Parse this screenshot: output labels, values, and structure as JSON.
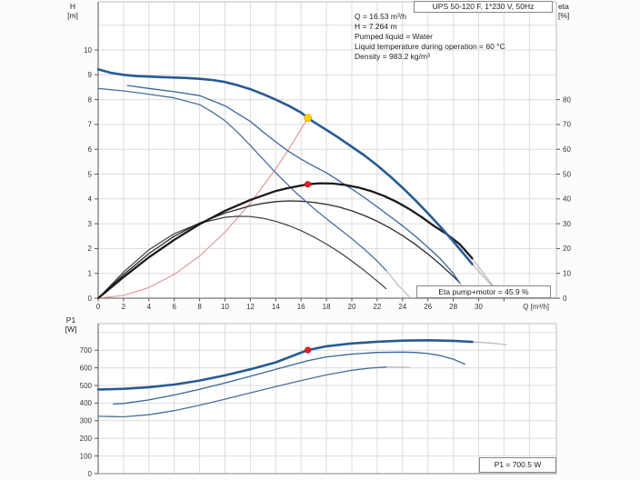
{
  "annotation": {
    "lines": [
      "Q = 16.53 m³/h",
      "H = 7.264 m",
      "Pumped liquid = Water",
      "Liquid temperature during operation = 60 °C",
      "Density = 983.2 kg/m³"
    ]
  },
  "chart_data": [
    {
      "id": "qh",
      "type": "line",
      "title": "UPS 50-120 F, 1*230 V, 50Hz",
      "xlabel": "Q [m³/h]",
      "ylabel_left": "H [m]",
      "ylabel_left_lines": [
        "H",
        "[m]"
      ],
      "ylabel_right": "eta [%]",
      "ylabel_right_lines": [
        "eta",
        "[%]"
      ],
      "result_box": "Eta pump+motor = 45.9 %",
      "xlim": [
        0,
        36.1
      ],
      "ylim_left": [
        0,
        11.9
      ],
      "ylim_right": [
        0,
        119
      ],
      "x_ticks": [
        0,
        2,
        4,
        6,
        8,
        10,
        12,
        14,
        16,
        18,
        20,
        22,
        24,
        26,
        28,
        30
      ],
      "y_ticks_left": [
        0,
        1,
        2,
        3,
        4,
        5,
        6,
        7,
        8,
        9,
        10
      ],
      "y_ticks_right": [
        0,
        10,
        20,
        30,
        40,
        50,
        60,
        70,
        80
      ],
      "grid": true,
      "colors": {
        "grid": "#dcdcdc",
        "frame": "#bdbdbd",
        "axis": "#555555",
        "tick_text": "#333333"
      },
      "series": [
        {
          "name": "system-curve",
          "axis": "H",
          "color": "#e59093",
          "width": 1.1,
          "x": [
            0,
            2,
            4,
            6,
            8,
            10,
            12,
            14,
            15,
            16,
            16.53
          ],
          "y": [
            0,
            0.11,
            0.43,
            0.96,
            1.7,
            2.66,
            3.83,
            5.21,
            5.98,
            6.81,
            7.264
          ]
        },
        {
          "name": "qh-speed1-gray-tail",
          "axis": "H",
          "color": "#b5b5b5",
          "width": 1.1,
          "x": [
            22.7,
            23.7,
            24.55
          ],
          "y": [
            1.12,
            0.5,
            0.05
          ]
        },
        {
          "name": "qh-speed2-gray-tail",
          "axis": "H",
          "color": "#b5b5b5",
          "width": 1.1,
          "x": [
            28.5,
            29.1
          ],
          "y": [
            0.62,
            0.15
          ]
        },
        {
          "name": "qh-speed3-gray-tail",
          "axis": "H",
          "color": "#b5b5b5",
          "width": 1.2,
          "x": [
            29.5,
            30.6,
            31.7
          ],
          "y": [
            1.37,
            0.75,
            0.12
          ]
        },
        {
          "name": "eta-speed3-gray-tail",
          "axis": "eta",
          "color": "#b5b5b5",
          "width": 1.2,
          "x": [
            29.5,
            30.6,
            31.7
          ],
          "y": [
            16,
            8.5,
            1.2
          ]
        },
        {
          "name": "eta-speed1",
          "axis": "eta",
          "color": "#3c3c3c",
          "width": 1.2,
          "x": [
            0,
            2,
            4,
            6,
            8,
            10,
            11,
            12,
            13,
            14,
            15,
            16,
            17,
            18,
            19,
            20,
            21,
            22,
            22.7
          ],
          "y": [
            0,
            10.5,
            19.5,
            26,
            30.2,
            32.6,
            33.0,
            32.9,
            32.2,
            31.0,
            29.3,
            27.2,
            24.7,
            21.8,
            18.6,
            15.0,
            11.1,
            6.9,
            3.8
          ]
        },
        {
          "name": "eta-speed2",
          "axis": "eta",
          "color": "#2b2b2b",
          "width": 1.3,
          "x": [
            0,
            2,
            4,
            6,
            8,
            10,
            12,
            13,
            14,
            15,
            16,
            17,
            18,
            19,
            20,
            21,
            22,
            23,
            24,
            25,
            26,
            27,
            28,
            28.5
          ],
          "y": [
            0,
            9.5,
            18,
            25,
            30.3,
            34.3,
            37.2,
            38.2,
            38.9,
            39.2,
            39.1,
            38.6,
            37.8,
            36.7,
            35.2,
            33.3,
            31.0,
            28.3,
            25.2,
            21.7,
            17.8,
            13.5,
            8.8,
            6.3
          ]
        },
        {
          "name": "qh-speed1",
          "axis": "H",
          "color": "#4b6f9d",
          "width": 1.3,
          "x": [
            0,
            2,
            4,
            6,
            8,
            9,
            10,
            11,
            12,
            13,
            14,
            15,
            15.6,
            17,
            18,
            19,
            20,
            21,
            22,
            22.7
          ],
          "y": [
            8.45,
            8.35,
            8.22,
            8.07,
            7.8,
            7.5,
            7.15,
            6.68,
            6.15,
            5.6,
            5.05,
            4.55,
            4.25,
            3.62,
            3.2,
            2.8,
            2.4,
            1.97,
            1.5,
            1.12
          ]
        },
        {
          "name": "qh-speed2",
          "axis": "H",
          "color": "#38659b",
          "width": 1.3,
          "x": [
            2.3,
            4,
            6,
            8,
            10,
            12,
            13,
            14,
            15,
            16,
            17,
            18,
            19,
            20,
            21,
            22,
            23,
            24,
            25,
            26,
            27,
            28,
            28.5
          ],
          "y": [
            8.57,
            8.45,
            8.32,
            8.16,
            7.75,
            7.12,
            6.7,
            6.3,
            5.92,
            5.6,
            5.32,
            5.05,
            4.72,
            4.4,
            4.05,
            3.68,
            3.3,
            2.92,
            2.5,
            2.05,
            1.58,
            1.0,
            0.62
          ]
        },
        {
          "name": "eta-speed3",
          "axis": "eta",
          "color": "#1a1a1a",
          "width": 2.3,
          "x": [
            0,
            2,
            4,
            6,
            8,
            10,
            12,
            14,
            15,
            16,
            16.53,
            17.5,
            18.5,
            19.5,
            20.5,
            21.5,
            22.5,
            23.5,
            24.5,
            25.5,
            26.5,
            27.5,
            28.5,
            29.5
          ],
          "y": [
            0,
            8.5,
            16.5,
            23.5,
            29.8,
            35.2,
            39.6,
            43.2,
            44.4,
            45.4,
            45.9,
            46.3,
            46.2,
            45.6,
            44.6,
            43.2,
            41.3,
            38.9,
            36.0,
            32.7,
            29.0,
            25.8,
            21.8,
            16.0
          ]
        },
        {
          "name": "qh-speed3",
          "axis": "H",
          "color": "#275b93",
          "width": 2.6,
          "x": [
            0,
            1,
            2,
            3,
            4,
            5,
            6,
            7,
            8,
            9,
            10,
            11,
            12,
            13,
            14,
            15,
            16,
            16.53,
            17,
            18,
            19,
            20,
            21,
            22,
            23,
            24,
            25,
            26,
            27,
            28,
            29,
            29.5
          ],
          "y": [
            9.22,
            9.08,
            9.0,
            8.95,
            8.93,
            8.91,
            8.89,
            8.87,
            8.84,
            8.79,
            8.71,
            8.58,
            8.42,
            8.22,
            8.0,
            7.76,
            7.48,
            7.264,
            7.1,
            6.78,
            6.45,
            6.1,
            5.75,
            5.35,
            4.92,
            4.45,
            3.95,
            3.42,
            2.87,
            2.29,
            1.68,
            1.37
          ]
        }
      ],
      "points": [
        {
          "name": "duty-point",
          "x": 16.53,
          "y": 7.264,
          "axis": "H",
          "color": "#ffd400",
          "stroke": "#e2a400",
          "r": 4
        },
        {
          "name": "eta-point",
          "x": 16.53,
          "y": 45.9,
          "axis": "eta",
          "color": "#ec1c24",
          "stroke": "#c40f14",
          "r": 3.2
        }
      ]
    },
    {
      "id": "p1",
      "type": "line",
      "xlabel": "",
      "ylabel": "P1 [W]",
      "ylabel_lines": [
        "P1",
        "[W]"
      ],
      "result_box": "P1 = 700.5 W",
      "xlim": [
        0,
        36.1
      ],
      "ylim": [
        0,
        850
      ],
      "y_ticks": [
        0,
        100,
        200,
        300,
        400,
        500,
        600,
        700
      ],
      "grid": true,
      "series": [
        {
          "name": "p1-speed1-gray-tail",
          "axis": "P1",
          "color": "#b5b5b5",
          "width": 1.1,
          "x": [
            22.7,
            23.7,
            24.55
          ],
          "y": [
            604,
            604,
            602
          ]
        },
        {
          "name": "p1-speed3-gray-tail",
          "axis": "P1",
          "color": "#b5b5b5",
          "width": 1.2,
          "x": [
            29.5,
            31,
            32.2
          ],
          "y": [
            747,
            740,
            731
          ]
        },
        {
          "name": "p1-speed1",
          "axis": "P1",
          "color": "#4b6f9d",
          "width": 1.3,
          "x": [
            0,
            2,
            4,
            6,
            8,
            10,
            12,
            14,
            16,
            18,
            20,
            21.5,
            22.7
          ],
          "y": [
            325,
            322,
            334,
            357,
            388,
            422,
            458,
            494,
            528,
            560,
            586,
            599,
            604
          ]
        },
        {
          "name": "p1-speed2",
          "axis": "P1",
          "color": "#38659b",
          "width": 1.3,
          "x": [
            1.2,
            2,
            4,
            6,
            8,
            10,
            12,
            14,
            16,
            16.53,
            18,
            20,
            22,
            24,
            25,
            26,
            27,
            28,
            28.9
          ],
          "y": [
            395,
            398,
            418,
            446,
            478,
            514,
            552,
            592,
            630,
            640,
            662,
            678,
            687,
            689,
            687,
            681,
            669,
            649,
            621
          ]
        },
        {
          "name": "p1-speed3",
          "axis": "P1",
          "color": "#275b93",
          "width": 2.6,
          "x": [
            0,
            2,
            4,
            6,
            8,
            10,
            12,
            14,
            16,
            16.53,
            18,
            20,
            22,
            24,
            26,
            28,
            29.5
          ],
          "y": [
            477,
            481,
            490,
            505,
            528,
            557,
            592,
            631,
            686,
            700.5,
            722,
            738,
            748,
            754,
            756,
            753,
            747
          ]
        }
      ],
      "points": [
        {
          "name": "p1-point",
          "x": 16.53,
          "y": 700.5,
          "axis": "P1",
          "color": "#ec1c24",
          "stroke": "#c40f14",
          "r": 3.2
        }
      ]
    }
  ]
}
